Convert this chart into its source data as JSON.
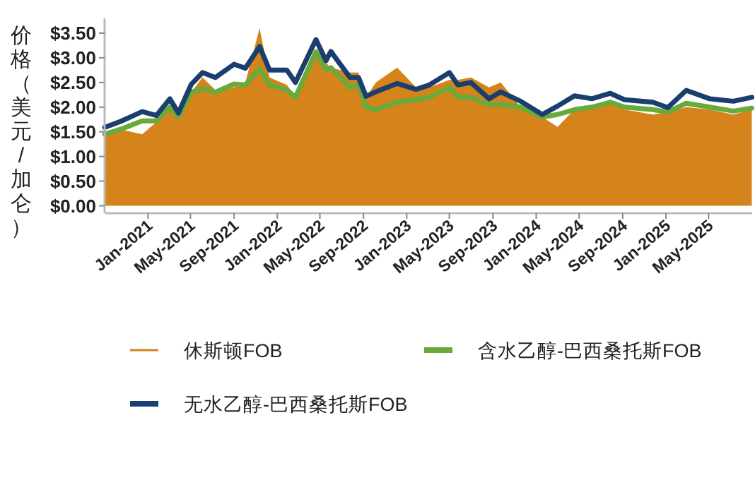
{
  "chart_data": {
    "type": "line",
    "ylabel": "价格（美元/加仑）",
    "x": [
      "2020-09-01",
      "2020-10-16",
      "2020-12-16",
      "2021-01-25",
      "2021-03-04",
      "2021-03-28",
      "2021-05-03",
      "2021-06-04",
      "2021-07-10",
      "2021-09-01",
      "2021-10-03",
      "2021-11-12",
      "2021-12-10",
      "2022-01-28",
      "2022-02-21",
      "2022-04-20",
      "2022-05-18",
      "2022-06-01",
      "2022-07-25",
      "2022-08-18",
      "2022-09-08",
      "2022-10-06",
      "2022-12-05",
      "2023-01-27",
      "2023-03-06",
      "2023-05-01",
      "2023-05-25",
      "2023-07-01",
      "2023-08-21",
      "2023-09-23",
      "2023-11-18",
      "2024-01-18",
      "2024-03-01",
      "2024-04-18",
      "2024-06-06",
      "2024-07-28",
      "2024-09-06",
      "2024-11-25",
      "2025-01-06",
      "2025-02-27",
      "2025-05-04",
      "2025-07-10",
      "2025-08-31"
    ],
    "series": [
      {
        "name": "休斯顿FOB",
        "type": "area",
        "color": "#d4841a",
        "values": [
          1.4,
          1.55,
          1.45,
          1.7,
          1.95,
          1.85,
          2.3,
          2.6,
          2.35,
          2.4,
          2.5,
          3.6,
          2.6,
          2.45,
          2.2,
          3.1,
          2.9,
          2.8,
          2.7,
          2.7,
          2.2,
          2.5,
          2.8,
          2.4,
          2.4,
          2.55,
          2.55,
          2.6,
          2.4,
          2.5,
          2.0,
          1.8,
          1.6,
          1.95,
          2.0,
          2.15,
          1.95,
          1.85,
          1.9,
          2.0,
          1.95,
          1.85,
          1.95
        ]
      },
      {
        "name": "含水乙醇-巴西桑托斯FOB",
        "type": "line",
        "color": "#6aaa3a",
        "values": [
          1.45,
          1.55,
          1.72,
          1.72,
          2.0,
          1.8,
          2.3,
          2.38,
          2.3,
          2.47,
          2.45,
          2.78,
          2.45,
          2.35,
          2.2,
          3.12,
          2.75,
          2.8,
          2.4,
          2.45,
          2.0,
          1.95,
          2.1,
          2.15,
          2.2,
          2.4,
          2.2,
          2.2,
          2.05,
          2.05,
          2.0,
          1.8,
          1.85,
          1.95,
          2.0,
          2.1,
          2.0,
          1.95,
          1.9,
          2.08,
          2.0,
          1.92,
          1.98
        ]
      },
      {
        "name": "无水乙醇-巴西桑托斯FOB",
        "type": "line",
        "color": "#1a3f6e",
        "values": [
          1.59,
          1.71,
          1.91,
          1.83,
          2.17,
          1.88,
          2.46,
          2.7,
          2.6,
          2.87,
          2.79,
          3.23,
          2.75,
          2.75,
          2.5,
          3.37,
          2.94,
          3.13,
          2.6,
          2.6,
          2.22,
          2.31,
          2.48,
          2.36,
          2.45,
          2.7,
          2.45,
          2.5,
          2.17,
          2.31,
          2.12,
          1.85,
          2.02,
          2.23,
          2.17,
          2.28,
          2.15,
          2.1,
          1.99,
          2.34,
          2.17,
          2.12,
          2.2
        ]
      }
    ],
    "xlim": [
      "2020-09-01",
      "2025-09-01"
    ],
    "xticks": [
      {
        "value": "2021-01-01",
        "label": "Jan-2021"
      },
      {
        "value": "2021-05-01",
        "label": "May-2021"
      },
      {
        "value": "2021-09-01",
        "label": "Sep-2021"
      },
      {
        "value": "2022-01-01",
        "label": "Jan-2022"
      },
      {
        "value": "2022-05-01",
        "label": "May-2022"
      },
      {
        "value": "2022-09-01",
        "label": "Sep-2022"
      },
      {
        "value": "2023-01-01",
        "label": "Jan-2023"
      },
      {
        "value": "2023-05-01",
        "label": "May-2023"
      },
      {
        "value": "2023-09-01",
        "label": "Sep-2023"
      },
      {
        "value": "2024-01-01",
        "label": "Jan-2024"
      },
      {
        "value": "2024-05-01",
        "label": "May-2024"
      },
      {
        "value": "2024-09-01",
        "label": "Sep-2024"
      },
      {
        "value": "2025-01-01",
        "label": "Jan-2025"
      },
      {
        "value": "2025-05-01",
        "label": "May-2025"
      }
    ],
    "ylim": [
      -0.15,
      3.8
    ],
    "yticks": [
      {
        "value": 0,
        "label": "$0.00"
      },
      {
        "value": 0.5,
        "label": "$0.50"
      },
      {
        "value": 1,
        "label": "$1.00"
      },
      {
        "value": 1.5,
        "label": "$1.50"
      },
      {
        "value": 2,
        "label": "$2.00"
      },
      {
        "value": 2.5,
        "label": "$2.50"
      },
      {
        "value": 3,
        "label": "$3.00"
      },
      {
        "value": 3.5,
        "label": "$3.50"
      }
    ],
    "grid": false,
    "legend": "bottom"
  }
}
